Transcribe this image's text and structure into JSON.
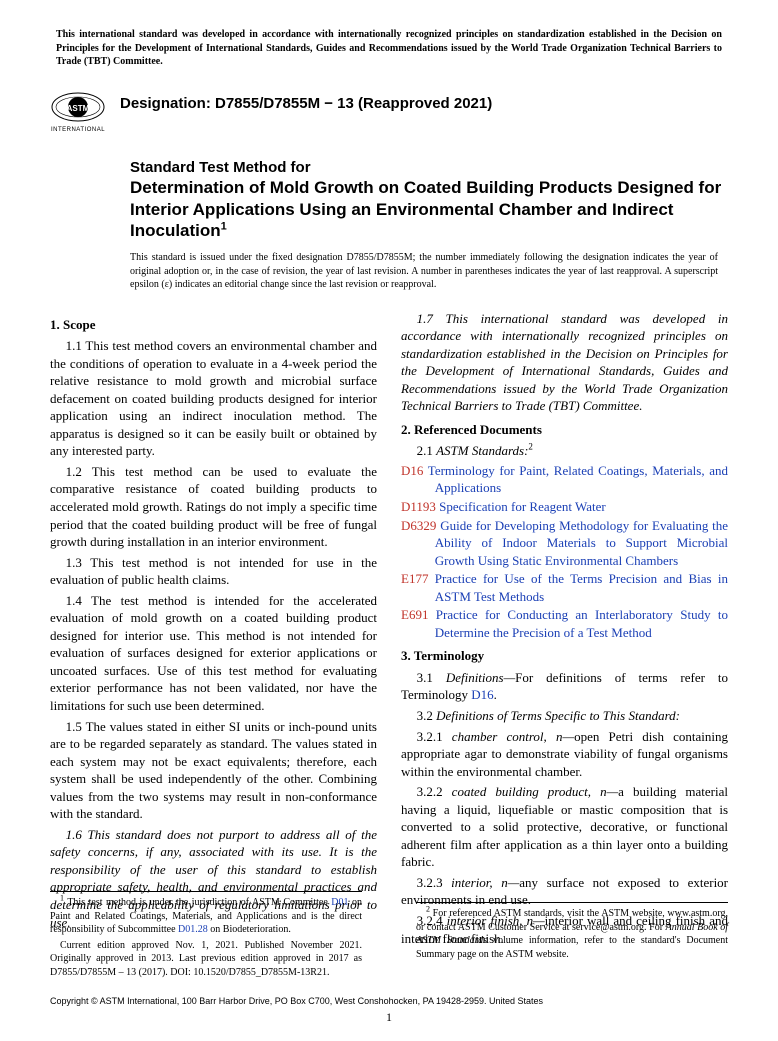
{
  "top_notice": "This international standard was developed in accordance with internationally recognized principles on standardization established in the Decision on Principles for the Development of International Standards, Guides and Recommendations issued by the World Trade Organization Technical Barriers to Trade (TBT) Committee.",
  "logo_text": "INTERNATIONAL",
  "designation": "Designation: D7855/D7855M − 13 (Reapproved 2021)",
  "title_pre": "Standard Test Method for",
  "title_main": "Determination of Mold Growth on Coated Building Products Designed for Interior Applications Using an Environmental Chamber and Indirect Inoculation",
  "title_sup": "1",
  "issue_note": "This standard is issued under the fixed designation D7855/D7855M; the number immediately following the designation indicates the year of original adoption or, in the case of revision, the year of last revision. A number in parentheses indicates the year of last reapproval. A superscript epsilon (ε) indicates an editorial change since the last revision or reapproval.",
  "sec1_head": "1. Scope",
  "p1_1": "1.1 This test method covers an environmental chamber and the conditions of operation to evaluate in a 4-week period the relative resistance to mold growth and microbial surface defacement on coated building products designed for interior application using an indirect inoculation method. The apparatus is designed so it can be easily built or obtained by any interested party.",
  "p1_2": "1.2 This test method can be used to evaluate the comparative resistance of coated building products to accelerated mold growth. Ratings do not imply a specific time period that the coated building product will be free of fungal growth during installation in an interior environment.",
  "p1_3": "1.3 This test method is not intended for use in the evaluation of public health claims.",
  "p1_4": "1.4 The test method is intended for the accelerated evaluation of mold growth on a coated building product designed for interior use. This method is not intended for evaluation of surfaces designed for exterior applications or uncoated surfaces. Use of this test method for evaluating exterior performance has not been validated, nor have the limitations for such use been determined.",
  "p1_5": "1.5 The values stated in either SI units or inch-pound units are to be regarded separately as standard. The values stated in each system may not be exact equivalents; therefore, each system shall be used independently of the other. Combining values from the two systems may result in non-conformance with the standard.",
  "p1_6": "1.6 This standard does not purport to address all of the safety concerns, if any, associated with its use. It is the responsibility of the user of this standard to establish appropriate safety, health, and environmental practices and determine the applicability of regulatory limitations prior to use.",
  "p1_7": "1.7 This international standard was developed in accordance with internationally recognized principles on standardization established in the Decision on Principles for the Development of International Standards, Guides and Recommendations issued by the World Trade Organization Technical Barriers to Trade (TBT) Committee.",
  "sec2_head": "2. Referenced Documents",
  "p2_1_lead": "2.1 ",
  "p2_1_ital": "ASTM Standards:",
  "p2_1_sup": "2",
  "refs": [
    {
      "code": "D16",
      "title": "Terminology for Paint, Related Coatings, Materials, and Applications"
    },
    {
      "code": "D1193",
      "title": "Specification for Reagent Water"
    },
    {
      "code": "D6329",
      "title": "Guide for Developing Methodology for Evaluating the Ability of Indoor Materials to Support Microbial Growth Using Static Environmental Chambers"
    },
    {
      "code": "E177",
      "title": "Practice for Use of the Terms Precision and Bias in ASTM Test Methods"
    },
    {
      "code": "E691",
      "title": "Practice for Conducting an Interlaboratory Study to Determine the Precision of a Test Method"
    }
  ],
  "sec3_head": "3. Terminology",
  "p3_1a": "3.1 ",
  "p3_1b": "Definitions—",
  "p3_1c": "For definitions of terms refer to Terminology ",
  "p3_1d": "D16",
  "p3_1e": ".",
  "p3_2a": "3.2 ",
  "p3_2b": "Definitions of Terms Specific to This Standard:",
  "p3_2_1a": "3.2.1 ",
  "p3_2_1b": "chamber control, n—",
  "p3_2_1c": "open Petri dish containing appropriate agar to demonstrate viability of fungal organisms within the environmental chamber.",
  "p3_2_2a": "3.2.2 ",
  "p3_2_2b": "coated building product, n—",
  "p3_2_2c": "a building material having a liquid, liquefiable or mastic composition that is converted to a solid protective, decorative, or functional adherent film after application as a thin layer onto a building fabric.",
  "p3_2_3a": "3.2.3 ",
  "p3_2_3b": "interior, n—",
  "p3_2_3c": "any surface not exposed to exterior environments in end use.",
  "p3_2_4a": "3.2.4 ",
  "p3_2_4b": "interior finish, n—",
  "p3_2_4c": "interior wall and ceiling finish and interior floor finish.",
  "fn1a": " This test method is under the jurisdiction of ASTM Committee ",
  "fn1b": "D01",
  "fn1c": " on Paint and Related Coatings, Materials, and Applications and is the direct responsibility of Subcommittee ",
  "fn1d": "D01.28",
  "fn1e": " on Biodeterioration.",
  "fn1f": "Current edition approved Nov. 1, 2021. Published November 2021. Originally approved in 2013. Last previous edition approved in 2017 as D7855/D7855M – 13 (2017). DOI: 10.1520/D7855_D7855M-13R21.",
  "fn2a": " For referenced ASTM standards, visit the ASTM website, www.astm.org, or contact ASTM Customer Service at service@astm.org. For ",
  "fn2b": "Annual Book of ASTM Standards",
  "fn2c": " volume information, refer to the standard's Document Summary page on the ASTM website.",
  "copyright": "Copyright © ASTM International, 100 Barr Harbor Drive, PO Box C700, West Conshohocken, PA 19428-2959. United States",
  "page_number": "1"
}
